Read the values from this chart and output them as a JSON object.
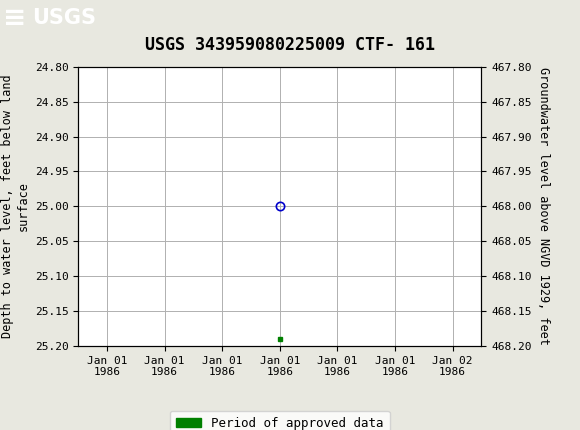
{
  "title": "USGS 343959080225009 CTF- 161",
  "ylabel_left": "Depth to water level, feet below land\nsurface",
  "ylabel_right": "Groundwater level above NGVD 1929, feet",
  "ylim_left": [
    24.8,
    25.2
  ],
  "ylim_right": [
    468.2,
    467.8
  ],
  "yticks_left": [
    24.8,
    24.85,
    24.9,
    24.95,
    25.0,
    25.05,
    25.1,
    25.15,
    25.2
  ],
  "yticks_right": [
    468.2,
    468.15,
    468.1,
    468.05,
    468.0,
    467.95,
    467.9,
    467.85,
    467.8
  ],
  "data_open_circle": {
    "y": 25.0
  },
  "data_green_square": {
    "y": 25.19
  },
  "xtick_labels": [
    "Jan 01\n1986",
    "Jan 01\n1986",
    "Jan 01\n1986",
    "Jan 01\n1986",
    "Jan 01\n1986",
    "Jan 01\n1986",
    "Jan 02\n1986"
  ],
  "header_color": "#1a6b3c",
  "header_text_color": "#ffffff",
  "background_color": "#e8e8e0",
  "plot_bg_color": "#ffffff",
  "grid_color": "#b0b0b0",
  "open_circle_color": "#0000cc",
  "green_square_color": "#008000",
  "legend_label": "Period of approved data",
  "font_family": "monospace",
  "title_fontsize": 12,
  "axis_label_fontsize": 8.5,
  "tick_fontsize": 8
}
